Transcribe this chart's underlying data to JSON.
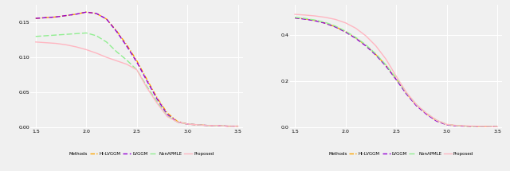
{
  "x": [
    1.5,
    1.6,
    1.7,
    1.8,
    1.9,
    2.0,
    2.1,
    2.2,
    2.3,
    2.4,
    2.5,
    2.6,
    2.7,
    2.8,
    2.9,
    3.0,
    3.1,
    3.2,
    3.3,
    3.4,
    3.5
  ],
  "left": {
    "HI-LVGGM": [
      0.156,
      0.157,
      0.158,
      0.16,
      0.162,
      0.165,
      0.163,
      0.155,
      0.138,
      0.118,
      0.095,
      0.068,
      0.042,
      0.02,
      0.008,
      0.004,
      0.003,
      0.002,
      0.002,
      0.001,
      0.001
    ],
    "LVGGM": [
      0.156,
      0.157,
      0.158,
      0.16,
      0.162,
      0.165,
      0.163,
      0.155,
      0.137,
      0.116,
      0.093,
      0.066,
      0.04,
      0.018,
      0.007,
      0.004,
      0.003,
      0.002,
      0.002,
      0.001,
      0.001
    ],
    "NonAPMLE": [
      0.13,
      0.131,
      0.132,
      0.133,
      0.134,
      0.135,
      0.131,
      0.122,
      0.108,
      0.096,
      0.082,
      0.058,
      0.036,
      0.016,
      0.007,
      0.004,
      0.003,
      0.002,
      0.002,
      0.001,
      0.001
    ],
    "Proposed": [
      0.122,
      0.121,
      0.12,
      0.118,
      0.115,
      0.111,
      0.106,
      0.1,
      0.095,
      0.09,
      0.082,
      0.056,
      0.034,
      0.015,
      0.007,
      0.004,
      0.003,
      0.002,
      0.002,
      0.001,
      0.001
    ]
  },
  "right": {
    "HI-LVGGM": [
      0.475,
      0.47,
      0.463,
      0.452,
      0.436,
      0.415,
      0.388,
      0.355,
      0.315,
      0.268,
      0.21,
      0.148,
      0.096,
      0.058,
      0.028,
      0.011,
      0.006,
      0.004,
      0.003,
      0.003,
      0.002
    ],
    "LVGGM": [
      0.474,
      0.469,
      0.462,
      0.451,
      0.435,
      0.413,
      0.386,
      0.353,
      0.313,
      0.265,
      0.207,
      0.145,
      0.093,
      0.056,
      0.026,
      0.01,
      0.005,
      0.004,
      0.003,
      0.002,
      0.002
    ],
    "NonAPMLE": [
      0.477,
      0.472,
      0.465,
      0.455,
      0.439,
      0.417,
      0.39,
      0.358,
      0.318,
      0.27,
      0.213,
      0.15,
      0.098,
      0.06,
      0.03,
      0.012,
      0.006,
      0.004,
      0.003,
      0.003,
      0.002
    ],
    "Proposed": [
      0.49,
      0.487,
      0.483,
      0.477,
      0.468,
      0.453,
      0.43,
      0.397,
      0.353,
      0.295,
      0.222,
      0.152,
      0.098,
      0.06,
      0.03,
      0.012,
      0.007,
      0.005,
      0.004,
      0.003,
      0.002
    ]
  },
  "colors": {
    "HI-LVGGM": "#FFA500",
    "LVGGM": "#9400D3",
    "NonAPMLE": "#90EE90",
    "Proposed": "#FFB6C1"
  },
  "left_ylim": [
    -0.002,
    0.175
  ],
  "left_yticks": [
    0.0,
    0.05,
    0.1,
    0.15
  ],
  "right_ylim": [
    -0.005,
    0.53
  ],
  "right_yticks": [
    0.0,
    0.2,
    0.4
  ],
  "xlim": [
    1.45,
    3.55
  ],
  "xticks": [
    1.5,
    2.0,
    2.5,
    3.0,
    3.5
  ],
  "background_color": "#f0f0f0",
  "grid_color": "#ffffff",
  "legend_label": "Methods",
  "methods": [
    "HI-LVGGM",
    "LVGGM",
    "NonAPMLE",
    "Proposed"
  ]
}
